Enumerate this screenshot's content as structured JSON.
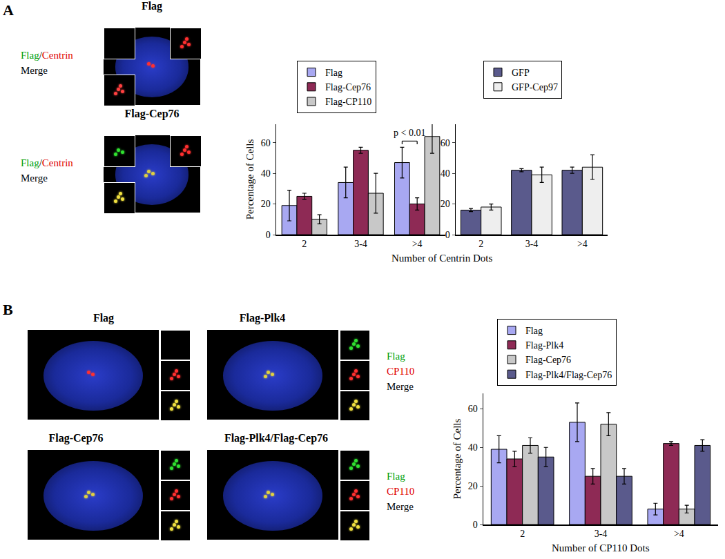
{
  "panels": [
    {
      "label": "A",
      "images": [
        {
          "title": "Flag"
        },
        {
          "title": "Flag-Cep76"
        }
      ],
      "channel_labels": [
        [
          {
            "text": "Flag",
            "color": "#00a000"
          },
          {
            "text": "/",
            "color": "#000000"
          },
          {
            "text": "Centrin",
            "color": "#e00000"
          }
        ],
        [
          {
            "text": "Merge",
            "color": "#000000"
          }
        ]
      ]
    },
    {
      "label": "B",
      "images": [
        {
          "title": "Flag"
        },
        {
          "title": "Flag-Plk4"
        },
        {
          "title": "Flag-Cep76"
        },
        {
          "title": "Flag-Plk4/Flag-Cep76"
        }
      ],
      "channel_labels": [
        [
          {
            "text": "Flag",
            "color": "#00a000"
          }
        ],
        [
          {
            "text": "CP110",
            "color": "#e00000"
          }
        ],
        [
          {
            "text": "Merge",
            "color": "#000000"
          }
        ]
      ]
    }
  ],
  "chart_data": [
    {
      "type": "bar",
      "categories": [
        "2",
        "3-4",
        ">4"
      ],
      "series": [
        {
          "name": "Flag",
          "color": "#a8a8f2",
          "values": [
            19,
            34,
            47
          ],
          "errors": [
            10,
            10,
            10
          ]
        },
        {
          "name": "Flag-Cep76",
          "color": "#8e2a55",
          "values": [
            25,
            55,
            20
          ],
          "errors": [
            2,
            2,
            4
          ]
        },
        {
          "name": "Flag-CP110",
          "color": "#c8c8c8",
          "values": [
            10,
            27,
            64
          ],
          "errors": [
            3,
            13,
            11
          ]
        }
      ],
      "y_label": "Percentage of Cells",
      "x_label": "Number of Centrin Dots",
      "ylim": [
        0,
        72
      ],
      "yticks": [
        0,
        20,
        40,
        60
      ],
      "grid": false,
      "legend": "top",
      "annotations": [
        "p < 0.01"
      ]
    },
    {
      "type": "bar",
      "categories": [
        "2",
        "3-4",
        ">4"
      ],
      "series": [
        {
          "name": "GFP",
          "color": "#5a5a8c",
          "values": [
            16,
            42,
            42
          ],
          "errors": [
            1,
            1,
            2
          ]
        },
        {
          "name": "GFP-Cep97",
          "color": "#eeeeee",
          "values": [
            18,
            39,
            44
          ],
          "errors": [
            2,
            5,
            8
          ]
        }
      ],
      "ylim": [
        0,
        72
      ],
      "yticks": [
        0,
        20,
        40,
        60
      ],
      "grid": false,
      "legend": "top"
    },
    {
      "type": "bar",
      "categories": [
        "2",
        "3-4",
        ">4"
      ],
      "series": [
        {
          "name": "Flag",
          "color": "#a8a8f2",
          "values": [
            39,
            53,
            8
          ],
          "errors": [
            7,
            10,
            3
          ]
        },
        {
          "name": "Flag-Plk4",
          "color": "#8e2a55",
          "values": [
            34,
            25,
            42
          ],
          "errors": [
            4,
            4,
            1
          ]
        },
        {
          "name": "Flag-Cep76",
          "color": "#c8c8c8",
          "values": [
            41,
            52,
            8
          ],
          "errors": [
            4,
            6,
            2
          ]
        },
        {
          "name": "Flag-Plk4/Flag-Cep76",
          "color": "#5a5a8c",
          "values": [
            35,
            25,
            41
          ],
          "errors": [
            5,
            4,
            3
          ]
        }
      ],
      "y_label": "Percentage of Cells",
      "x_label": "Number of CP110 Dots",
      "ylim": [
        0,
        68
      ],
      "yticks": [
        0,
        20,
        40,
        60
      ],
      "grid": false,
      "legend": "top"
    }
  ]
}
